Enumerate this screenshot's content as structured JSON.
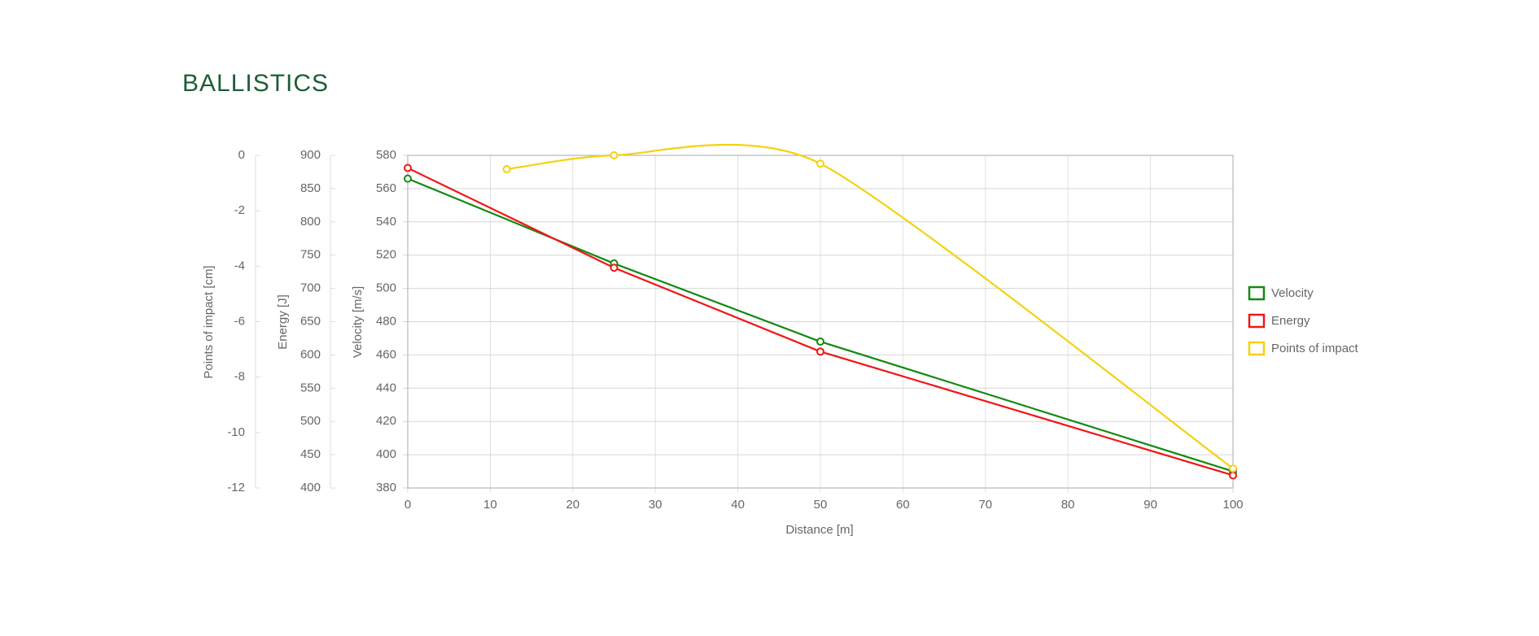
{
  "chart_data": {
    "type": "line",
    "title": "BALLISTICS",
    "x_label": "Distance [m]",
    "y_label": "Velocity [m/s]",
    "y2_label": "Energy [J]",
    "y3_label": "Points of impact [cm]",
    "xlim": [
      0,
      100
    ],
    "xticks": [
      0,
      10,
      20,
      30,
      40,
      50,
      60,
      70,
      80,
      90,
      100
    ],
    "ylim": [
      380,
      580
    ],
    "yticks": [
      380,
      400,
      420,
      440,
      460,
      480,
      500,
      520,
      540,
      560,
      580
    ],
    "y2lim": [
      400,
      900
    ],
    "y2ticks": [
      400,
      450,
      500,
      550,
      600,
      650,
      700,
      750,
      800,
      850,
      900
    ],
    "y3lim": [
      -12,
      0
    ],
    "y3ticks": [
      -12,
      -10,
      -8,
      -6,
      -4,
      -2,
      0
    ],
    "grid": true,
    "legend": "right",
    "series": [
      {
        "name": "Velocity",
        "color": "#138a13",
        "axis": "y",
        "smooth": false,
        "x": [
          0,
          25,
          50,
          100
        ],
        "values": [
          566,
          515,
          468,
          390
        ]
      },
      {
        "name": "Energy",
        "color": "#f01616",
        "axis": "y2",
        "smooth": false,
        "x": [
          0,
          25,
          50,
          100
        ],
        "values": [
          881,
          731,
          605,
          419
        ]
      },
      {
        "name": "Points of impact",
        "color": "#f5d10f",
        "axis": "y3",
        "smooth": true,
        "x": [
          12,
          25,
          50,
          100
        ],
        "values": [
          -0.5,
          0,
          -0.3,
          -11.3
        ]
      }
    ]
  }
}
